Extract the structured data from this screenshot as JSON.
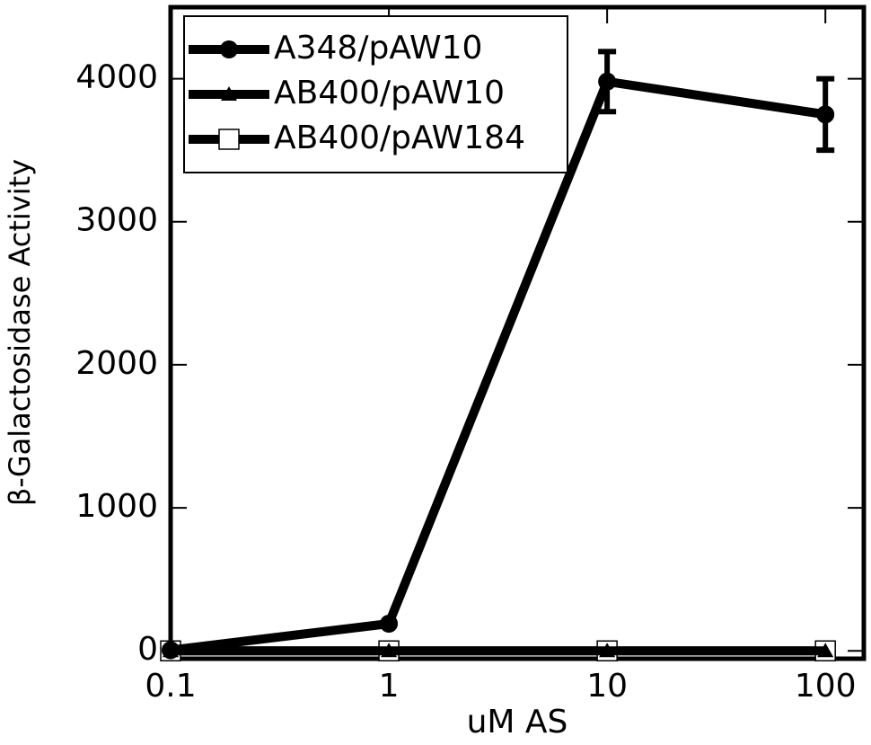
{
  "chart_data": {
    "type": "line",
    "xlabel": "uM AS",
    "ylabel": "β-Galactosidase Activity",
    "x": [
      0.1,
      1,
      10,
      100
    ],
    "xscale": "log",
    "xlim": [
      0.1,
      150
    ],
    "xticks": [
      0.1,
      1,
      10,
      100
    ],
    "ylim": [
      -55,
      4500
    ],
    "yticks": [
      0,
      1000,
      2000,
      3000,
      4000
    ],
    "legend": "upper left",
    "series": [
      {
        "name": "A348/pAW10",
        "color": "#000000",
        "marker": "circle",
        "values": [
          5,
          190,
          3980,
          3750
        ],
        "errors": [
          null,
          null,
          210,
          250
        ]
      },
      {
        "name": "AB400/pAW10",
        "color": "#000000",
        "marker": "triangle",
        "values": [
          0,
          0,
          0,
          0
        ]
      },
      {
        "name": "AB400/pAW184",
        "color": "#000000",
        "marker": "open-square",
        "values": [
          0,
          0,
          0,
          0
        ]
      }
    ]
  }
}
